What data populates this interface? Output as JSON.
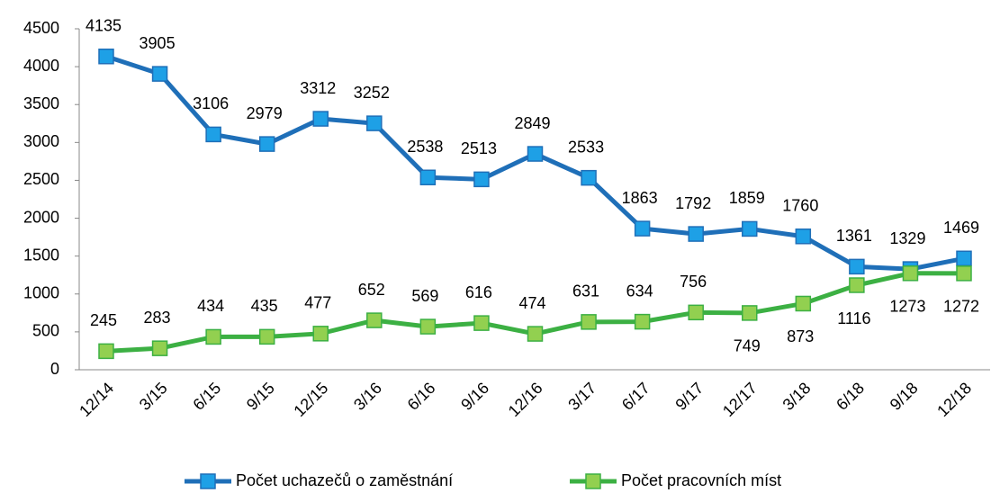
{
  "chart_data": {
    "type": "line",
    "categories": [
      "12/14",
      "3/15",
      "6/15",
      "9/15",
      "12/15",
      "3/16",
      "6/16",
      "9/16",
      "12/16",
      "3/17",
      "6/17",
      "9/17",
      "12/17",
      "3/18",
      "6/18",
      "9/18",
      "12/18"
    ],
    "series": [
      {
        "name": "Počet uchazečů o zaměstnání",
        "color": "#1f6fb8",
        "marker_color": "#1ea0e6",
        "values": [
          4135,
          3905,
          3106,
          2979,
          3312,
          3252,
          2538,
          2513,
          2849,
          2533,
          1863,
          1792,
          1859,
          1760,
          1361,
          1329,
          1469
        ]
      },
      {
        "name": "Počet pracovních míst",
        "color": "#3cb043",
        "marker_color": "#92d050",
        "values": [
          245,
          283,
          434,
          435,
          477,
          652,
          569,
          616,
          474,
          631,
          634,
          756,
          749,
          873,
          1116,
          1273,
          1272
        ]
      }
    ],
    "ylim": [
      0,
      4500
    ],
    "yticks": [
      0,
      500,
      1000,
      1500,
      2000,
      2500,
      3000,
      3500,
      4000,
      4500
    ],
    "legend": "bottom"
  }
}
